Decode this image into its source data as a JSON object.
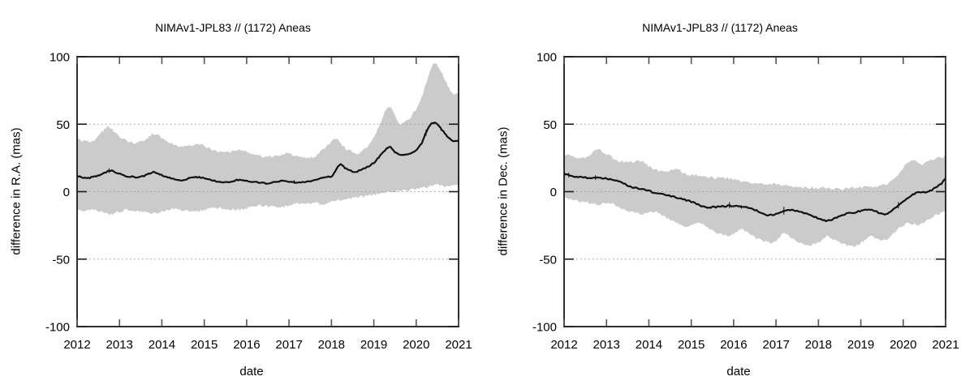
{
  "page": {
    "background": "#ffffff"
  },
  "chart_data": [
    {
      "type": "line",
      "title": "NIMAv1-JPL83 // (1172) Aneas",
      "xlabel": "date",
      "ylabel": "difference in R.A. (mas)",
      "xlim": [
        2012,
        2021
      ],
      "ylim": [
        -100,
        100
      ],
      "xticks": [
        2012,
        2013,
        2014,
        2015,
        2016,
        2017,
        2018,
        2019,
        2020,
        2021
      ],
      "yticks": [
        -100,
        -50,
        0,
        50,
        100
      ],
      "grid_y": [
        -50,
        0,
        50
      ],
      "grid": true,
      "legend": "none",
      "colors": {
        "band": "#cbcbcb",
        "line": "#111111",
        "grid": "#9a9a9a",
        "frame": "#1a1a1a",
        "tick": "#555555"
      },
      "series": [
        {
          "name": "uncertainty-band",
          "type": "band",
          "upper": {
            "x": [
              2012.0,
              2012.2,
              2012.38,
              2012.55,
              2012.72,
              2012.9,
              2013.1,
              2013.35,
              2013.6,
              2013.8,
              2014.0,
              2014.2,
              2014.45,
              2014.65,
              2014.85,
              2015.05,
              2015.25,
              2015.45,
              2015.65,
              2015.85,
              2016.05,
              2016.25,
              2016.45,
              2016.7,
              2016.9,
              2017.1,
              2017.4,
              2017.6,
              2017.8,
              2018.0,
              2018.12,
              2018.3,
              2018.6,
              2018.9,
              2019.1,
              2019.35,
              2019.6,
              2019.8,
              2019.95,
              2020.1,
              2020.25,
              2020.42,
              2020.6,
              2020.75,
              2020.9,
              2021.0
            ],
            "y": [
              39,
              37,
              37.5,
              43,
              48,
              44,
              39,
              36,
              38,
              43,
              40,
              36,
              33,
              34,
              35.5,
              33,
              30.5,
              29,
              29.5,
              31,
              29,
              27,
              26,
              26.5,
              28,
              27,
              25,
              26,
              31,
              37,
              39.5,
              33,
              28.5,
              35,
              47,
              63,
              51,
              53,
              59,
              67,
              82,
              95,
              88,
              78,
              72,
              73
            ]
          },
          "lower": {
            "x": [
              2012.0,
              2012.3,
              2012.55,
              2012.8,
              2013.0,
              2013.2,
              2013.55,
              2013.8,
              2014.0,
              2014.2,
              2014.55,
              2014.8,
              2015.0,
              2015.2,
              2015.55,
              2015.8,
              2016.0,
              2016.2,
              2016.55,
              2016.8,
              2017.0,
              2017.2,
              2017.55,
              2017.8,
              2018.0,
              2018.2,
              2018.5,
              2018.8,
              2019.0,
              2019.3,
              2019.6,
              2019.9,
              2020.1,
              2020.3,
              2020.45,
              2020.6,
              2020.8,
              2021.0
            ],
            "y": [
              -14.5,
              -13.5,
              -15,
              -16.5,
              -15,
              -13.5,
              -14.5,
              -16,
              -14.5,
              -13,
              -14,
              -15,
              -13.5,
              -12,
              -12.5,
              -13.5,
              -12,
              -10.5,
              -11,
              -11.5,
              -10,
              -8.5,
              -8.5,
              -9,
              -7.5,
              -6,
              -4.5,
              -3.5,
              -2.5,
              -0.5,
              0.5,
              1.5,
              2.5,
              3.5,
              5.5,
              4.5,
              3.5,
              5
            ]
          }
        },
        {
          "name": "difference-ra",
          "type": "line",
          "x": [
            2012.0,
            2012.15,
            2012.3,
            2012.45,
            2012.6,
            2012.72,
            2012.82,
            2012.95,
            2013.1,
            2013.3,
            2013.5,
            2013.65,
            2013.8,
            2013.95,
            2014.1,
            2014.3,
            2014.5,
            2014.65,
            2014.8,
            2015.0,
            2015.2,
            2015.45,
            2015.6,
            2015.8,
            2016.0,
            2016.2,
            2016.5,
            2016.8,
            2017.0,
            2017.2,
            2017.4,
            2017.6,
            2017.8,
            2018.0,
            2018.1,
            2018.22,
            2018.35,
            2018.5,
            2018.65,
            2018.8,
            2019.0,
            2019.15,
            2019.35,
            2019.5,
            2019.65,
            2019.8,
            2019.95,
            2020.1,
            2020.25,
            2020.4,
            2020.55,
            2020.7,
            2020.85,
            2021.0
          ],
          "y": [
            11.5,
            10.5,
            10.5,
            11.5,
            13,
            15,
            15.5,
            14,
            12,
            11,
            11,
            12.5,
            14.5,
            13,
            11,
            9.5,
            8.5,
            9.8,
            10.8,
            10,
            8.2,
            7.2,
            7,
            8.8,
            8,
            7,
            6.2,
            7.8,
            7.2,
            6.5,
            7.2,
            8.5,
            10.5,
            11.5,
            16,
            20,
            17,
            15,
            15.5,
            17.5,
            21.5,
            26.5,
            33,
            29.5,
            27.5,
            27.8,
            30,
            34.5,
            45,
            51,
            48,
            42,
            38,
            38
          ]
        }
      ]
    },
    {
      "type": "line",
      "title": "NIMAv1-JPL83 // (1172) Aneas",
      "xlabel": "date",
      "ylabel": "difference in Dec. (mas)",
      "xlim": [
        2012,
        2021
      ],
      "ylim": [
        -100,
        100
      ],
      "xticks": [
        2012,
        2013,
        2014,
        2015,
        2016,
        2017,
        2018,
        2019,
        2020,
        2021
      ],
      "yticks": [
        -100,
        -50,
        0,
        50,
        100
      ],
      "grid_y": [
        -50,
        0,
        50
      ],
      "grid": true,
      "legend": "none",
      "colors": {
        "band": "#cbcbcb",
        "line": "#111111",
        "grid": "#9a9a9a",
        "frame": "#1a1a1a",
        "tick": "#555555"
      },
      "series": [
        {
          "name": "uncertainty-band",
          "type": "band",
          "upper": {
            "x": [
              2012.0,
              2012.2,
              2012.45,
              2012.65,
              2012.8,
              2013.0,
              2013.2,
              2013.5,
              2013.8,
              2014.1,
              2014.4,
              2014.65,
              2014.9,
              2015.2,
              2015.5,
              2015.85,
              2016.2,
              2016.5,
              2016.85,
              2017.2,
              2017.5,
              2017.85,
              2018.2,
              2018.5,
              2018.85,
              2019.2,
              2019.5,
              2019.75,
              2019.95,
              2020.1,
              2020.25,
              2020.45,
              2020.65,
              2020.85,
              2021.0
            ],
            "y": [
              28,
              26,
              25,
              28,
              31,
              28,
              24,
              21.5,
              23,
              17,
              15,
              16.5,
              13,
              12,
              10.5,
              10,
              7.5,
              6.5,
              6,
              4.5,
              3.5,
              3,
              2.5,
              2,
              3,
              3.5,
              4.5,
              8,
              15,
              22,
              23,
              20.5,
              23,
              25.5,
              26
            ]
          },
          "lower": {
            "x": [
              2012.0,
              2012.3,
              2012.6,
              2012.85,
              2013.1,
              2013.4,
              2013.7,
              2013.9,
              2014.15,
              2014.5,
              2014.75,
              2014.95,
              2015.2,
              2015.5,
              2015.75,
              2015.95,
              2016.2,
              2016.5,
              2016.75,
              2016.95,
              2017.2,
              2017.5,
              2017.75,
              2017.95,
              2018.2,
              2018.5,
              2018.75,
              2018.95,
              2019.2,
              2019.5,
              2019.7,
              2019.9,
              2020.1,
              2020.3,
              2020.5,
              2020.7,
              2020.85,
              2021.0
            ],
            "y": [
              -4,
              -7,
              -8.5,
              -9.5,
              -8.5,
              -13,
              -16,
              -16.5,
              -15,
              -21,
              -24.5,
              -25,
              -22.5,
              -29,
              -32,
              -32.5,
              -28,
              -34,
              -37,
              -37,
              -31.5,
              -36.5,
              -39,
              -38.5,
              -33,
              -38,
              -40,
              -39,
              -33.5,
              -36,
              -33,
              -27,
              -23.5,
              -24.5,
              -22,
              -18.5,
              -16,
              -14
            ]
          }
        },
        {
          "name": "difference-dec",
          "type": "line",
          "x": [
            2012.0,
            2012.15,
            2012.3,
            2012.5,
            2012.7,
            2012.9,
            2013.05,
            2013.2,
            2013.4,
            2013.6,
            2013.8,
            2014.0,
            2014.2,
            2014.4,
            2014.6,
            2014.8,
            2015.0,
            2015.2,
            2015.35,
            2015.5,
            2015.7,
            2015.9,
            2016.1,
            2016.3,
            2016.5,
            2016.7,
            2016.85,
            2017.0,
            2017.15,
            2017.3,
            2017.5,
            2017.7,
            2017.9,
            2018.1,
            2018.25,
            2018.4,
            2018.55,
            2018.7,
            2018.9,
            2019.1,
            2019.3,
            2019.45,
            2019.57,
            2019.7,
            2019.85,
            2020.0,
            2020.15,
            2020.3,
            2020.45,
            2020.6,
            2020.75,
            2020.9,
            2021.0
          ],
          "y": [
            13.5,
            12,
            11,
            10.5,
            10,
            10,
            9.5,
            8.5,
            6,
            3.5,
            2,
            0.5,
            -1.5,
            -2.5,
            -4,
            -5.5,
            -7.5,
            -10,
            -11.5,
            -11.5,
            -11,
            -10.5,
            -10.5,
            -11.5,
            -13.5,
            -16.5,
            -17.5,
            -16.5,
            -14.5,
            -13.5,
            -14.5,
            -16,
            -18.5,
            -21,
            -21.5,
            -19.5,
            -17.5,
            -16,
            -15,
            -13.5,
            -14,
            -16,
            -17,
            -14.5,
            -11,
            -7.5,
            -4,
            -1,
            -0.5,
            0,
            2.5,
            6,
            10
          ]
        }
      ]
    }
  ]
}
